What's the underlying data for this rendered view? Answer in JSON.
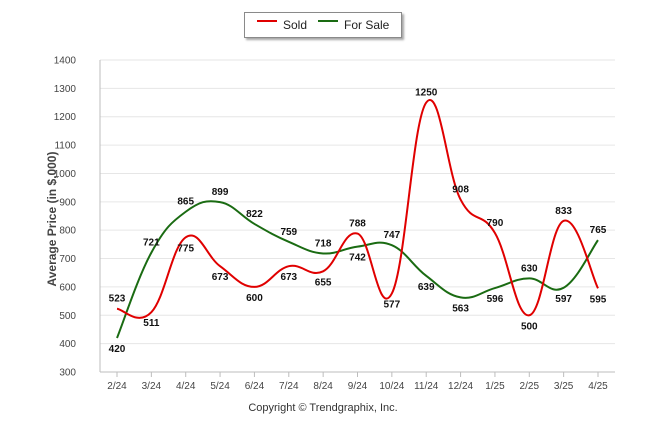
{
  "colors": {
    "sold": "#e00000",
    "for_sale": "#1a6b12",
    "grid": "#e6e6e6",
    "axis": "#bdbdbd"
  },
  "copyright": "Copyright © Trendgraphix, Inc.",
  "chart_data": {
    "type": "line",
    "title": "",
    "xlabel": "",
    "ylabel": "Average Price (in $,000)",
    "ylim": [
      300,
      1400
    ],
    "yticks": [
      300,
      400,
      500,
      600,
      700,
      800,
      900,
      1000,
      1100,
      1200,
      1300,
      1400
    ],
    "grid": true,
    "legend_position": "top-center",
    "categories": [
      "2/24",
      "3/24",
      "4/24",
      "5/24",
      "6/24",
      "7/24",
      "8/24",
      "9/24",
      "10/24",
      "11/24",
      "12/24",
      "1/25",
      "2/25",
      "3/25",
      "4/25"
    ],
    "series": [
      {
        "name": "Sold",
        "color": "#e00000",
        "values": [
          523,
          511,
          775,
          673,
          600,
          673,
          655,
          788,
          577,
          1250,
          908,
          790,
          500,
          833,
          595
        ]
      },
      {
        "name": "For Sale",
        "color": "#1a6b12",
        "values": [
          420,
          721,
          865,
          899,
          822,
          759,
          718,
          742,
          747,
          639,
          563,
          596,
          630,
          597,
          765
        ]
      }
    ]
  }
}
